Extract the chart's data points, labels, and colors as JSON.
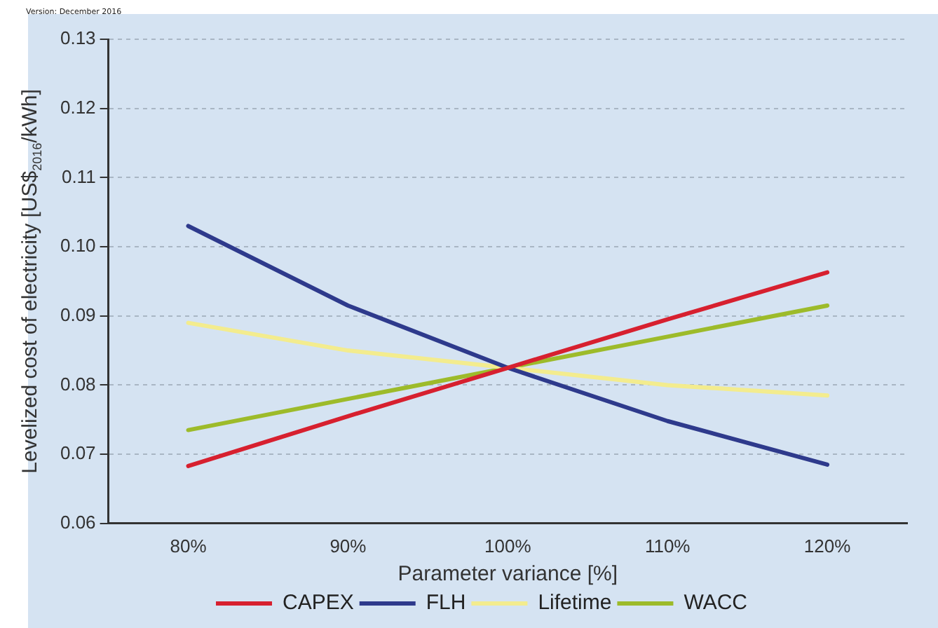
{
  "chart_data": {
    "type": "line",
    "xlabel": "Parameter variance [%]",
    "ylabel": "Levelized cost of electricity [US$$_{2016}$/kWh]",
    "annotations": [
      "Version: December 2016"
    ],
    "categories": [
      "80%",
      "90%",
      "100%",
      "110%",
      "120%"
    ],
    "series": [
      {
        "name": "CAPEX",
        "color": "#d7202f",
        "values": [
          0.0683,
          0.0755,
          0.0825,
          0.0895,
          0.0963
        ]
      },
      {
        "name": "FLH",
        "color": "#2e3a8c",
        "values": [
          0.103,
          0.0915,
          0.0825,
          0.0748,
          0.0685
        ]
      },
      {
        "name": "Lifetime",
        "color": "#f3ec8e",
        "values": [
          0.089,
          0.085,
          0.0825,
          0.08,
          0.0785
        ]
      },
      {
        "name": "WACC",
        "color": "#9dbb2a",
        "values": [
          0.0735,
          0.078,
          0.0825,
          0.087,
          0.0915
        ]
      }
    ],
    "ylim": [
      0.06,
      0.13
    ],
    "yticks": [
      0.06,
      0.07,
      0.08,
      0.09,
      {
        "value": 0.1,
        "label": "0.10"
      },
      0.11,
      0.12,
      0.13
    ],
    "grid": "y",
    "legend": "bottom",
    "marker": "none",
    "line_style": "solid"
  }
}
